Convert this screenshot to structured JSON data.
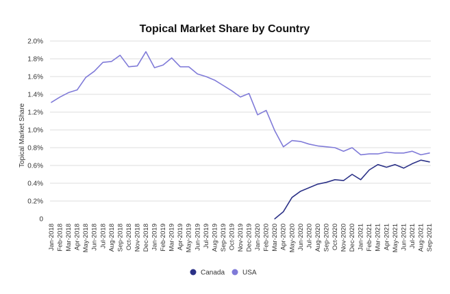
{
  "chart_data": {
    "type": "line",
    "title": "Topical Market Share by Country",
    "xlabel": "",
    "ylabel": "Topical Market Share",
    "ylim": [
      0,
      2.0
    ],
    "yticks": [
      "0",
      "0.2%",
      "0.4%",
      "0.6%",
      "0.8%",
      "1.0%",
      "1.2%",
      "1.4%",
      "1.6%",
      "1.8%",
      "2.0%"
    ],
    "ytick_values": [
      0,
      0.2,
      0.4,
      0.6,
      0.8,
      1.0,
      1.2,
      1.4,
      1.6,
      1.8,
      2.0
    ],
    "grid": "horizontal",
    "legend_position": "bottom",
    "x": [
      "Jan-2018",
      "Feb-2018",
      "Mar-2018",
      "Apr-2018",
      "May-2018",
      "Jun-2018",
      "Jul-2018",
      "Aug-2018",
      "Sep-2018",
      "Oct-2018",
      "Nov-2018",
      "Dec-2018",
      "Jan-2019",
      "Feb-2019",
      "Mar-2019",
      "Apr-2019",
      "May-2019",
      "Jun-2019",
      "Jul-2019",
      "Aug-2019",
      "Sep-2019",
      "Oct-2019",
      "Nov-2019",
      "Dec-2019",
      "Jan-2020",
      "Feb-2020",
      "Mar-2020",
      "Apr-2020",
      "May-2020",
      "Jun-2020",
      "Jul-2020",
      "Aug-2020",
      "Sep-2020",
      "Oct-2020",
      "Nov-2020",
      "Dec-2020",
      "Jan-2021",
      "Feb-2021",
      "Mar-2021",
      "Apr-2021",
      "May-2021",
      "Jun-2021",
      "Jul-2021",
      "Aug-2021",
      "Sep-2021"
    ],
    "series": [
      {
        "name": "Canada",
        "color": "#2b3187",
        "values": [
          null,
          null,
          null,
          null,
          null,
          null,
          null,
          null,
          null,
          null,
          null,
          null,
          null,
          null,
          null,
          null,
          null,
          null,
          null,
          null,
          null,
          null,
          null,
          null,
          null,
          null,
          0.0,
          0.08,
          0.24,
          0.31,
          0.35,
          0.39,
          0.41,
          0.44,
          0.43,
          0.5,
          0.44,
          0.55,
          0.61,
          0.58,
          0.61,
          0.57,
          0.62,
          0.66,
          0.64
        ]
      },
      {
        "name": "USA",
        "color": "#7f7ad8",
        "values": [
          1.31,
          1.37,
          1.42,
          1.45,
          1.59,
          1.66,
          1.76,
          1.77,
          1.84,
          1.71,
          1.72,
          1.88,
          1.7,
          1.73,
          1.81,
          1.71,
          1.71,
          1.63,
          1.6,
          1.56,
          1.5,
          1.44,
          1.37,
          1.41,
          1.17,
          1.22,
          0.99,
          0.81,
          0.88,
          0.87,
          0.84,
          0.82,
          0.81,
          0.8,
          0.76,
          0.8,
          0.72,
          0.73,
          0.73,
          0.75,
          0.74,
          0.74,
          0.76,
          0.72,
          0.74
        ]
      }
    ]
  }
}
